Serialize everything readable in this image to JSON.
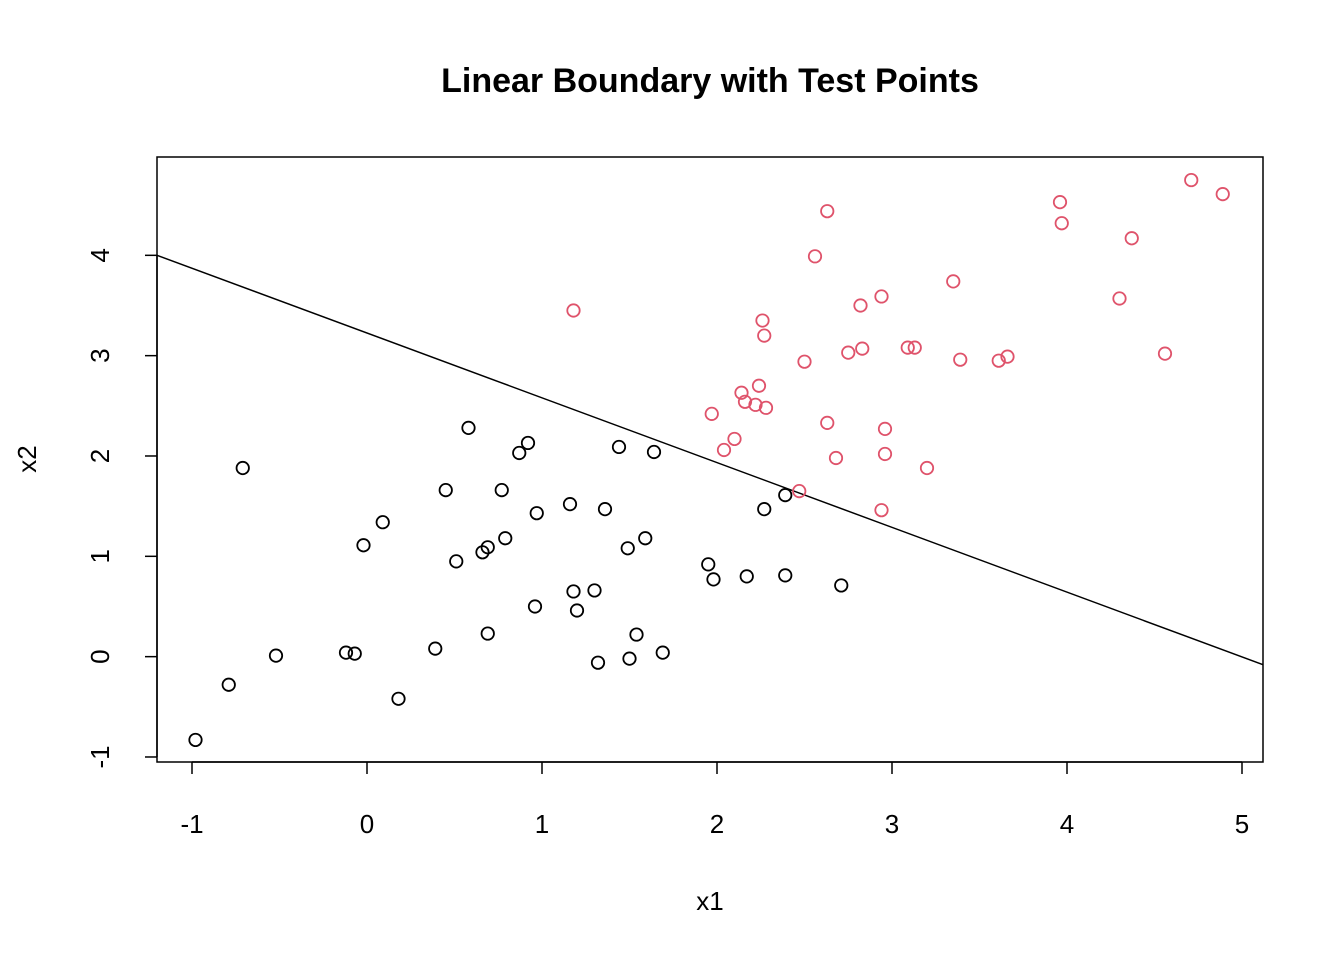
{
  "chart_data": {
    "type": "scatter",
    "title": "Linear Boundary with Test Points",
    "xlabel": "x1",
    "ylabel": "x2",
    "xlim": [
      -1.2,
      5.12
    ],
    "ylim": [
      -1.05,
      4.98
    ],
    "xticks": [
      -1,
      0,
      1,
      2,
      3,
      4,
      5
    ],
    "yticks": [
      -1,
      0,
      1,
      2,
      3,
      4
    ],
    "grid": false,
    "legend": null,
    "series": [
      {
        "color": "#000000",
        "marker": "open-circle",
        "points": [
          [
            -0.98,
            -0.83
          ],
          [
            -0.79,
            -0.28
          ],
          [
            -0.71,
            1.88
          ],
          [
            -0.52,
            0.01
          ],
          [
            -0.12,
            0.04
          ],
          [
            -0.07,
            0.03
          ],
          [
            -0.02,
            1.11
          ],
          [
            0.09,
            1.34
          ],
          [
            0.18,
            -0.42
          ],
          [
            0.39,
            0.08
          ],
          [
            0.45,
            1.66
          ],
          [
            0.51,
            0.95
          ],
          [
            0.58,
            2.28
          ],
          [
            0.66,
            1.04
          ],
          [
            0.69,
            1.09
          ],
          [
            0.69,
            0.23
          ],
          [
            0.77,
            1.66
          ],
          [
            0.79,
            1.18
          ],
          [
            0.87,
            2.03
          ],
          [
            0.92,
            2.13
          ],
          [
            0.96,
            0.5
          ],
          [
            0.97,
            1.43
          ],
          [
            1.16,
            1.52
          ],
          [
            1.18,
            0.65
          ],
          [
            1.2,
            0.46
          ],
          [
            1.3,
            0.66
          ],
          [
            1.32,
            -0.06
          ],
          [
            1.36,
            1.47
          ],
          [
            1.44,
            2.09
          ],
          [
            1.49,
            1.08
          ],
          [
            1.5,
            -0.02
          ],
          [
            1.54,
            0.22
          ],
          [
            1.59,
            1.18
          ],
          [
            1.64,
            2.04
          ],
          [
            1.69,
            0.04
          ],
          [
            1.95,
            0.92
          ],
          [
            1.98,
            0.77
          ],
          [
            2.17,
            0.8
          ],
          [
            2.27,
            1.47
          ],
          [
            2.39,
            1.61
          ],
          [
            2.39,
            0.81
          ],
          [
            2.71,
            0.71
          ]
        ]
      },
      {
        "color": "#DF536B",
        "marker": "open-circle",
        "points": [
          [
            1.18,
            3.45
          ],
          [
            1.97,
            2.42
          ],
          [
            2.04,
            2.06
          ],
          [
            2.1,
            2.17
          ],
          [
            2.14,
            2.63
          ],
          [
            2.16,
            2.54
          ],
          [
            2.22,
            2.51
          ],
          [
            2.24,
            2.7
          ],
          [
            2.26,
            3.35
          ],
          [
            2.27,
            3.2
          ],
          [
            2.28,
            2.48
          ],
          [
            2.47,
            1.65
          ],
          [
            2.5,
            2.94
          ],
          [
            2.56,
            3.99
          ],
          [
            2.63,
            4.44
          ],
          [
            2.63,
            2.33
          ],
          [
            2.68,
            1.98
          ],
          [
            2.75,
            3.03
          ],
          [
            2.82,
            3.5
          ],
          [
            2.83,
            3.07
          ],
          [
            2.94,
            3.59
          ],
          [
            2.94,
            1.46
          ],
          [
            2.96,
            2.27
          ],
          [
            2.96,
            2.02
          ],
          [
            3.09,
            3.08
          ],
          [
            3.13,
            3.08
          ],
          [
            3.2,
            1.88
          ],
          [
            3.35,
            3.74
          ],
          [
            3.39,
            2.96
          ],
          [
            3.61,
            2.95
          ],
          [
            3.66,
            2.99
          ],
          [
            3.96,
            4.53
          ],
          [
            3.97,
            4.32
          ],
          [
            4.3,
            3.57
          ],
          [
            4.37,
            4.17
          ],
          [
            4.56,
            3.02
          ],
          [
            4.71,
            4.75
          ],
          [
            4.89,
            4.61
          ]
        ]
      }
    ],
    "lines": [
      {
        "color": "#000000",
        "x": [
          -1.2,
          5.12
        ],
        "y": [
          4.0,
          -0.08
        ]
      }
    ]
  }
}
